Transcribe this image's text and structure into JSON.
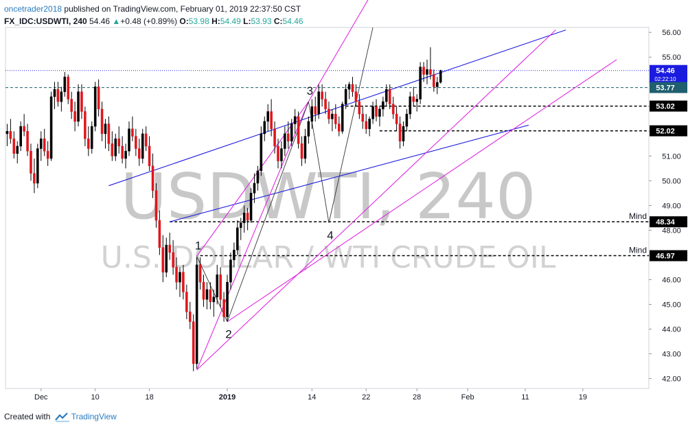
{
  "header": {
    "author": "oncetrader2018",
    "published_text": " published on TradingView.com, February 01, 2019 22:37:50 CST",
    "symbol": "FX_IDC:USDWTI, 240",
    "last": "54.46",
    "change_arrow": "▲",
    "change": "+0.48 (+0.89%)",
    "open_label": "O:",
    "open": "53.98",
    "high_label": "H:",
    "high": "54.49",
    "low_label": "L:",
    "low": "53.93",
    "close_label": "C:",
    "close": "54.46"
  },
  "footer": {
    "created_with": "Created with",
    "brand": "TradingView",
    "logo_icon": "tradingview-logo-icon"
  },
  "colors": {
    "up_candle": "#000000",
    "down_candle": "#e0161c",
    "channel_lines": "#1b1be0",
    "wedge_lines": "#e028e0",
    "wave_lines": "#333333",
    "price_tag": "#1b1be0",
    "current_price_tag": "#1f5f6f",
    "watermark": "#c8c8c8"
  },
  "chart_data": {
    "type": "candlestick",
    "watermark_title": "USDWTI, 240",
    "watermark_subtitle": "U.S. DOLLAR / WTI CRUDE OIL",
    "ylim": [
      41.6,
      56.2
    ],
    "y_ticks": [
      "56.00",
      "55.00",
      "54.00",
      "53.00",
      "52.00",
      "51.00",
      "50.00",
      "49.00",
      "48.00",
      "47.00",
      "46.00",
      "45.00",
      "44.00",
      "43.00",
      "42.00"
    ],
    "x_ticks": [
      {
        "label": "Dec",
        "bar": 10
      },
      {
        "label": "10",
        "bar": 26
      },
      {
        "label": "18",
        "bar": 42
      },
      {
        "label": "2019",
        "bar": 65
      },
      {
        "label": "14",
        "bar": 90
      },
      {
        "label": "22",
        "bar": 106
      },
      {
        "label": "28",
        "bar": 121
      },
      {
        "label": "Feb",
        "bar": 136
      },
      {
        "label": "11",
        "bar": 153
      },
      {
        "label": "19",
        "bar": 170
      }
    ],
    "total_slots": 190,
    "ohlc": [
      [
        51.9,
        52.3,
        51.4,
        52.0
      ],
      [
        52.0,
        52.5,
        51.5,
        51.7
      ],
      [
        51.7,
        52.0,
        50.9,
        51.1
      ],
      [
        51.1,
        51.6,
        50.7,
        51.4
      ],
      [
        51.4,
        52.4,
        51.2,
        52.2
      ],
      [
        52.2,
        52.7,
        51.8,
        52.0
      ],
      [
        52.0,
        52.3,
        51.0,
        51.2
      ],
      [
        51.2,
        51.5,
        50.0,
        50.3
      ],
      [
        50.3,
        50.9,
        49.5,
        49.9
      ],
      [
        49.9,
        51.5,
        49.7,
        51.3
      ],
      [
        51.3,
        52.0,
        50.8,
        51.7
      ],
      [
        51.7,
        52.1,
        51.0,
        51.2
      ],
      [
        51.2,
        51.6,
        50.6,
        50.9
      ],
      [
        50.9,
        53.6,
        50.8,
        53.4
      ],
      [
        53.4,
        54.0,
        52.9,
        53.7
      ],
      [
        53.7,
        54.0,
        53.0,
        53.2
      ],
      [
        53.2,
        53.8,
        52.8,
        53.6
      ],
      [
        53.6,
        54.4,
        53.4,
        54.2
      ],
      [
        54.2,
        54.3,
        53.1,
        53.3
      ],
      [
        53.3,
        53.6,
        52.5,
        52.8
      ],
      [
        52.8,
        53.2,
        52.0,
        52.4
      ],
      [
        52.4,
        53.9,
        52.2,
        53.6
      ],
      [
        53.6,
        53.9,
        52.5,
        52.8
      ],
      [
        52.8,
        53.0,
        51.4,
        51.7
      ],
      [
        51.7,
        52.2,
        51.0,
        51.3
      ],
      [
        51.3,
        52.4,
        51.1,
        52.2
      ],
      [
        52.2,
        54.0,
        52.0,
        53.8
      ],
      [
        53.8,
        54.1,
        52.6,
        52.9
      ],
      [
        52.9,
        53.2,
        51.6,
        51.9
      ],
      [
        51.9,
        52.5,
        51.3,
        52.3
      ],
      [
        52.3,
        52.6,
        51.2,
        51.5
      ],
      [
        51.5,
        52.0,
        50.8,
        51.0
      ],
      [
        51.0,
        51.9,
        50.8,
        51.7
      ],
      [
        51.7,
        52.2,
        51.1,
        51.4
      ],
      [
        51.4,
        51.8,
        50.7,
        50.9
      ],
      [
        50.9,
        51.5,
        50.5,
        51.2
      ],
      [
        51.2,
        52.4,
        51.0,
        52.1
      ],
      [
        52.1,
        52.6,
        51.6,
        51.8
      ],
      [
        51.8,
        52.1,
        51.0,
        51.3
      ],
      [
        51.3,
        51.7,
        50.6,
        50.9
      ],
      [
        50.9,
        52.1,
        50.7,
        51.9
      ],
      [
        51.9,
        52.2,
        51.2,
        51.4
      ],
      [
        51.4,
        51.8,
        50.4,
        50.6
      ],
      [
        50.6,
        51.1,
        49.3,
        49.6
      ],
      [
        49.6,
        49.9,
        48.1,
        48.4
      ],
      [
        48.4,
        48.8,
        47.0,
        47.3
      ],
      [
        47.3,
        47.8,
        45.9,
        46.3
      ],
      [
        46.3,
        47.7,
        46.1,
        47.4
      ],
      [
        47.4,
        47.9,
        46.8,
        47.1
      ],
      [
        47.1,
        47.6,
        46.2,
        46.5
      ],
      [
        46.5,
        46.9,
        45.6,
        45.9
      ],
      [
        45.9,
        46.5,
        45.3,
        46.3
      ],
      [
        46.3,
        46.6,
        45.2,
        45.5
      ],
      [
        45.5,
        45.8,
        44.4,
        44.7
      ],
      [
        44.7,
        45.1,
        44.0,
        44.3
      ],
      [
        44.3,
        44.6,
        42.3,
        42.6
      ],
      [
        42.6,
        46.9,
        42.4,
        46.6
      ],
      [
        46.6,
        46.9,
        45.6,
        45.9
      ],
      [
        45.9,
        46.2,
        44.9,
        45.2
      ],
      [
        45.2,
        45.9,
        44.8,
        45.6
      ],
      [
        45.6,
        45.9,
        44.8,
        45.1
      ],
      [
        45.1,
        45.6,
        44.5,
        45.3
      ],
      [
        45.3,
        46.6,
        45.0,
        46.2
      ],
      [
        46.2,
        46.5,
        44.9,
        45.2
      ],
      [
        45.2,
        45.5,
        44.3,
        44.5
      ],
      [
        44.5,
        46.2,
        44.3,
        45.9
      ],
      [
        45.9,
        47.1,
        45.6,
        46.8
      ],
      [
        46.8,
        47.5,
        46.5,
        47.2
      ],
      [
        47.2,
        48.4,
        47.0,
        48.1
      ],
      [
        48.1,
        48.5,
        47.6,
        48.3
      ],
      [
        48.3,
        49.0,
        47.9,
        48.7
      ],
      [
        48.7,
        48.9,
        48.0,
        48.4
      ],
      [
        48.4,
        49.7,
        48.3,
        49.5
      ],
      [
        49.5,
        50.3,
        49.1,
        49.9
      ],
      [
        49.9,
        50.6,
        49.6,
        50.4
      ],
      [
        50.4,
        52.2,
        50.2,
        51.9
      ],
      [
        51.9,
        52.6,
        51.6,
        52.4
      ],
      [
        52.4,
        53.1,
        52.0,
        52.8
      ],
      [
        52.8,
        53.3,
        51.8,
        52.1
      ],
      [
        52.1,
        52.4,
        51.1,
        51.4
      ],
      [
        51.4,
        51.7,
        50.5,
        50.8
      ],
      [
        50.8,
        51.6,
        50.5,
        51.3
      ],
      [
        51.3,
        52.2,
        51.0,
        51.9
      ],
      [
        51.9,
        52.4,
        51.3,
        51.6
      ],
      [
        51.6,
        52.5,
        51.4,
        52.3
      ],
      [
        52.3,
        52.9,
        51.9,
        52.6
      ],
      [
        52.6,
        52.8,
        51.3,
        51.5
      ],
      [
        51.5,
        51.8,
        50.6,
        50.9
      ],
      [
        50.9,
        52.1,
        50.7,
        51.8
      ],
      [
        51.8,
        52.6,
        51.5,
        52.4
      ],
      [
        52.4,
        53.3,
        52.1,
        53.0
      ],
      [
        53.0,
        53.4,
        52.4,
        52.7
      ],
      [
        52.7,
        53.9,
        52.5,
        53.6
      ],
      [
        53.6,
        53.9,
        53.0,
        53.3
      ],
      [
        53.3,
        53.6,
        52.7,
        52.9
      ],
      [
        52.9,
        53.2,
        52.3,
        52.5
      ],
      [
        52.5,
        52.9,
        52.0,
        52.7
      ],
      [
        52.7,
        53.1,
        52.1,
        52.3
      ],
      [
        52.3,
        52.6,
        51.8,
        52.0
      ],
      [
        52.0,
        53.2,
        51.9,
        53.1
      ],
      [
        53.1,
        53.9,
        52.9,
        53.7
      ],
      [
        53.7,
        54.0,
        53.3,
        53.9
      ],
      [
        53.9,
        54.2,
        53.4,
        53.6
      ],
      [
        53.6,
        53.9,
        53.0,
        53.2
      ],
      [
        53.2,
        53.5,
        52.5,
        52.7
      ],
      [
        52.7,
        53.0,
        52.1,
        52.4
      ],
      [
        52.4,
        52.7,
        51.9,
        52.1
      ],
      [
        52.1,
        52.6,
        51.8,
        52.5
      ],
      [
        52.5,
        53.2,
        52.3,
        53.0
      ],
      [
        53.0,
        53.3,
        52.4,
        52.6
      ],
      [
        52.6,
        53.0,
        52.2,
        52.9
      ],
      [
        52.9,
        53.4,
        52.6,
        53.2
      ],
      [
        53.2,
        53.9,
        53.0,
        53.7
      ],
      [
        53.7,
        53.9,
        52.9,
        53.1
      ],
      [
        53.1,
        53.4,
        52.5,
        52.7
      ],
      [
        52.7,
        53.0,
        52.0,
        52.3
      ],
      [
        52.3,
        52.6,
        51.3,
        51.6
      ],
      [
        51.6,
        52.4,
        51.4,
        52.2
      ],
      [
        52.2,
        52.9,
        52.0,
        52.7
      ],
      [
        52.7,
        53.6,
        52.5,
        53.4
      ],
      [
        53.4,
        53.8,
        53.0,
        53.2
      ],
      [
        53.2,
        53.5,
        52.8,
        53.3
      ],
      [
        53.3,
        54.8,
        53.1,
        54.6
      ],
      [
        54.6,
        54.8,
        54.0,
        54.3
      ],
      [
        54.3,
        54.9,
        53.9,
        54.5
      ],
      [
        54.5,
        55.4,
        54.1,
        54.3
      ],
      [
        54.3,
        54.5,
        53.6,
        53.8
      ],
      [
        53.8,
        54.2,
        53.5,
        53.98
      ],
      [
        53.98,
        54.49,
        53.93,
        54.46
      ]
    ],
    "horizontal_levels": [
      {
        "value": 53.02,
        "label": "53.02"
      },
      {
        "value": 52.02,
        "label": "52.02"
      },
      {
        "value": 48.34,
        "label": "48.34",
        "note": "Mind"
      },
      {
        "value": 46.97,
        "label": "46.97",
        "note": "Mind"
      }
    ],
    "current_price": {
      "value": 54.46,
      "label": "54.46"
    },
    "prev_close": {
      "value": 53.77,
      "label": "53.77"
    },
    "hidden_tag_text": "02:22:10",
    "wave_labels": [
      {
        "label": "1",
        "bar": 56,
        "price": 46.95
      },
      {
        "label": "2",
        "bar": 65,
        "price": 44.3
      },
      {
        "label": "3",
        "bar": 89,
        "price": 53.2
      },
      {
        "label": "4",
        "bar": 95,
        "price": 48.3
      }
    ]
  }
}
